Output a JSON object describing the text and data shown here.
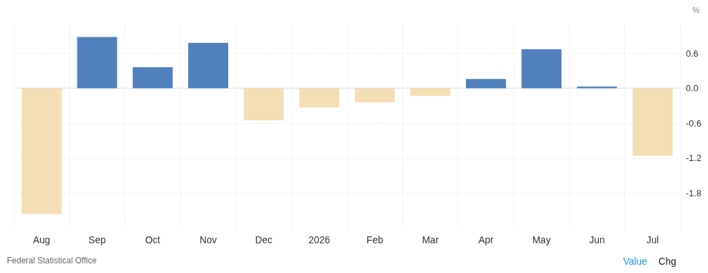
{
  "chart_data": {
    "type": "bar",
    "ylabel": "%",
    "categories": [
      "Aug",
      "Sep",
      "Oct",
      "Nov",
      "Dec",
      "2026",
      "Feb",
      "Mar",
      "Apr",
      "May",
      "Jun",
      "Jul"
    ],
    "values": [
      -2.16,
      0.88,
      0.36,
      0.78,
      -0.55,
      -0.33,
      -0.24,
      -0.13,
      0.16,
      0.67,
      0.03,
      -1.16
    ],
    "colors": [
      "#f5deb3",
      "#4f81bd",
      "#4f81bd",
      "#4f81bd",
      "#f5deb3",
      "#f5deb3",
      "#f5deb3",
      "#f5deb3",
      "#4f81bd",
      "#4f81bd",
      "#4f81bd",
      "#f5deb3"
    ],
    "ylim": [
      -2.4,
      1.1
    ],
    "yticks": [
      {
        "value": 0.6,
        "label": "0.6"
      },
      {
        "value": 0,
        "label": "0.0"
      },
      {
        "value": -0.6,
        "label": "-0.6"
      },
      {
        "value": -1.2,
        "label": "-1.2"
      },
      {
        "value": -1.8,
        "label": "-1.8"
      }
    ],
    "grid": true,
    "annotations": [
      "Federal Statistical Office",
      "Value",
      "Chg"
    ]
  }
}
